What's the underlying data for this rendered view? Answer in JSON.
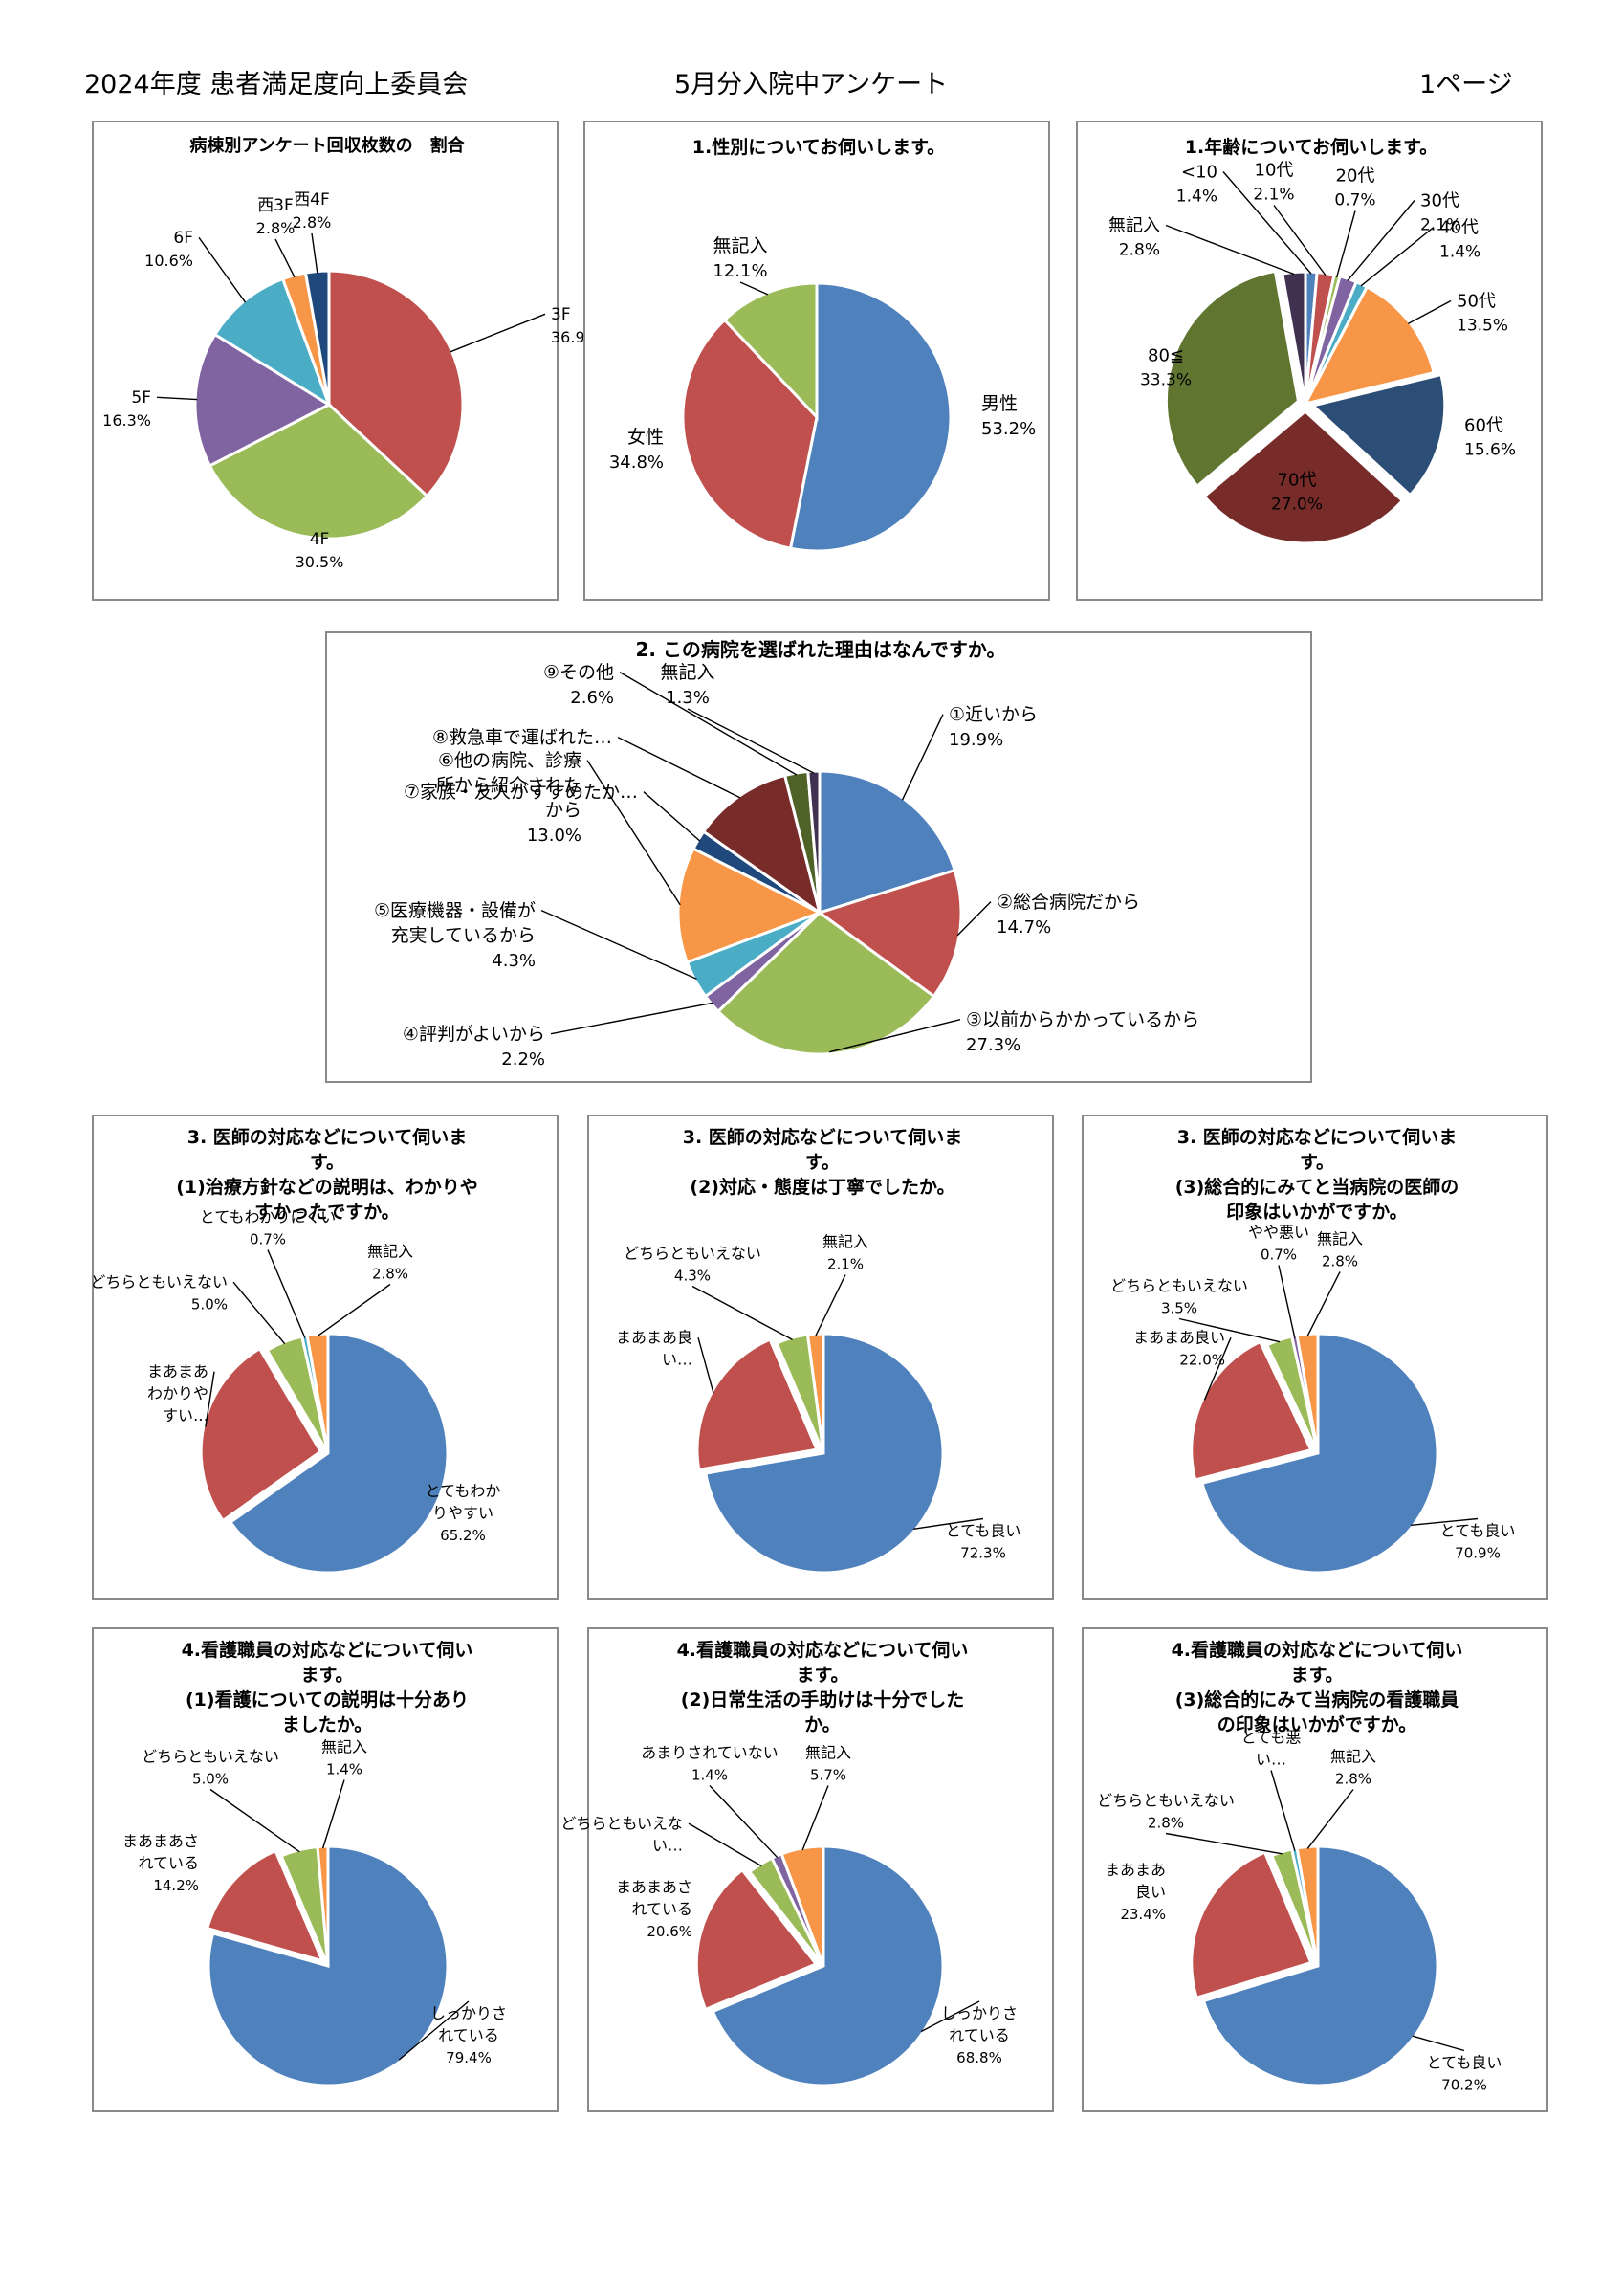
{
  "header": {
    "left": "2024年度 患者満足度向上委員会",
    "center": "5月分入院中アンケート",
    "right": "1ページ"
  },
  "chart_data": [
    {
      "id": "p1",
      "type": "pie",
      "title": [
        "病棟別アンケート回収枚数の　割合"
      ],
      "slices": [
        {
          "label": "3F",
          "value": 36.9,
          "value_text": "36.9%",
          "color": "#c0504d"
        },
        {
          "label": "4F",
          "value": 30.5,
          "value_text": "30.5%",
          "color": "#9bbb59"
        },
        {
          "label": "5F",
          "value": 16.3,
          "value_text": "16.3%",
          "color": "#8064a2"
        },
        {
          "label": "6F",
          "value": 10.6,
          "value_text": "10.6%",
          "color": "#4bacc6"
        },
        {
          "label": "西3F",
          "value": 2.8,
          "value_text": "2.8%",
          "color": "#f79646"
        },
        {
          "label": "西4F",
          "value": 2.8,
          "value_text": "2.8%",
          "color": "#1f497d"
        }
      ]
    },
    {
      "id": "p2",
      "type": "pie",
      "title": [
        "1.性別についてお伺いします。"
      ],
      "slices": [
        {
          "label": "男性",
          "value": 53.2,
          "value_text": "53.2%",
          "color": "#4f81bd"
        },
        {
          "label": "女性",
          "value": 34.8,
          "value_text": "34.8%",
          "color": "#c0504d"
        },
        {
          "label": "無記入",
          "value": 12.1,
          "value_text": "12.1%",
          "color": "#9bbb59"
        }
      ]
    },
    {
      "id": "p3",
      "type": "pie",
      "title": [
        "1.年齢についてお伺いします。"
      ],
      "slices": [
        {
          "label": "<10",
          "value": 1.4,
          "value_text": "1.4%",
          "color": "#4f81bd"
        },
        {
          "label": "10代",
          "value": 2.1,
          "value_text": "2.1%",
          "color": "#c0504d"
        },
        {
          "label": "20代",
          "value": 0.7,
          "value_text": "0.7%",
          "color": "#9bbb59"
        },
        {
          "label": "30代",
          "value": 2.1,
          "value_text": "2.1%",
          "color": "#8064a2"
        },
        {
          "label": "40代",
          "value": 1.4,
          "value_text": "1.4%",
          "color": "#4bacc6"
        },
        {
          "label": "50代",
          "value": 13.5,
          "value_text": "13.5%",
          "color": "#f79646"
        },
        {
          "label": "60代",
          "value": 15.6,
          "value_text": "15.6%",
          "color": "#2c4d75"
        },
        {
          "label": "70代",
          "value": 27.0,
          "value_text": "27.0%",
          "color": "#772c2a"
        },
        {
          "label": "80≦",
          "value": 33.3,
          "value_text": "33.3%",
          "color": "#5f7530"
        },
        {
          "label": "無記入",
          "value": 2.8,
          "value_text": "2.8%",
          "color": "#403151"
        }
      ]
    },
    {
      "id": "p4",
      "type": "pie",
      "title": [
        "2. この病院を選ばれた理由はなんですか。"
      ],
      "slices": [
        {
          "label": "①近いから",
          "value": 19.9,
          "value_text": "19.9%",
          "color": "#4f81bd"
        },
        {
          "label": "②総合病院だから",
          "value": 14.7,
          "value_text": "14.7%",
          "color": "#c0504d"
        },
        {
          "label": "③以前からかかっているから",
          "value": 27.3,
          "value_text": "27.3%",
          "color": "#9bbb59"
        },
        {
          "label": "④評判がよいから",
          "value": 2.2,
          "value_text": "2.2%",
          "color": "#8064a2"
        },
        {
          "label": "⑤医療機器・設備が充実しているから",
          "value": 4.3,
          "value_text": "4.3%",
          "color": "#4bacc6"
        },
        {
          "label": "⑥他の病院、診療所から紹介されたから",
          "value": 13.0,
          "value_text": "13.0%",
          "color": "#f79646"
        },
        {
          "label": "⑦家族・友人がすすめたか…",
          "value": 2.2,
          "value_text": "",
          "color": "#1f497d"
        },
        {
          "label": "⑧救急車で運ばれた…",
          "value": 11.2,
          "value_text": "",
          "color": "#772c2a"
        },
        {
          "label": "⑨その他",
          "value": 2.6,
          "value_text": "2.6%",
          "color": "#4f6228"
        },
        {
          "label": "無記入",
          "value": 1.3,
          "value_text": "1.3%",
          "color": "#403151"
        }
      ]
    },
    {
      "id": "p5",
      "type": "pie",
      "title": [
        "3. 医師の対応などについて伺いま",
        "す。",
        "(1)治療方針などの説明は、わかりや",
        "すかったですか。"
      ],
      "slices": [
        {
          "label": "とてもわかりやすい",
          "value": 65.2,
          "value_text": "65.2%",
          "color": "#4f81bd"
        },
        {
          "label": "まあまあわかりやすい…",
          "value": 26.3,
          "value_text": "",
          "color": "#c0504d"
        },
        {
          "label": "どちらともいえない",
          "value": 5.0,
          "value_text": "5.0%",
          "color": "#9bbb59"
        },
        {
          "label": "とてもわかりにくい",
          "value": 0.7,
          "value_text": "0.7%",
          "color": "#4bacc6"
        },
        {
          "label": "無記入",
          "value": 2.8,
          "value_text": "2.8%",
          "color": "#f79646"
        }
      ]
    },
    {
      "id": "p6",
      "type": "pie",
      "title": [
        "3. 医師の対応などについて伺いま",
        "す。",
        "(2)対応・態度は丁寧でしたか。"
      ],
      "slices": [
        {
          "label": "とても良い",
          "value": 72.3,
          "value_text": "72.3%",
          "color": "#4f81bd"
        },
        {
          "label": "まあまあ良い…",
          "value": 21.3,
          "value_text": "",
          "color": "#c0504d"
        },
        {
          "label": "どちらともいえない",
          "value": 4.3,
          "value_text": "4.3%",
          "color": "#9bbb59"
        },
        {
          "label": "無記入",
          "value": 2.1,
          "value_text": "2.1%",
          "color": "#f79646"
        }
      ]
    },
    {
      "id": "p7",
      "type": "pie",
      "title": [
        "3. 医師の対応などについて伺いま",
        "す。",
        "(3)総合的にみてと当病院の医師の",
        "印象はいかがですか。"
      ],
      "slices": [
        {
          "label": "とても良い",
          "value": 70.9,
          "value_text": "70.9%",
          "color": "#4f81bd"
        },
        {
          "label": "まあまあ良い",
          "value": 22.0,
          "value_text": "22.0%",
          "color": "#c0504d"
        },
        {
          "label": "どちらともいえない",
          "value": 3.5,
          "value_text": "3.5%",
          "color": "#9bbb59"
        },
        {
          "label": "やや悪い",
          "value": 0.7,
          "value_text": "0.7%",
          "color": "#8064a2"
        },
        {
          "label": "無記入",
          "value": 2.8,
          "value_text": "2.8%",
          "color": "#f79646"
        }
      ]
    },
    {
      "id": "p8",
      "type": "pie",
      "title": [
        "4.看護職員の対応などについて伺い",
        "ます。",
        "(1)看護についての説明は十分あり",
        "ましたか。"
      ],
      "slices": [
        {
          "label": "しっかりされている",
          "value": 79.4,
          "value_text": "79.4%",
          "color": "#4f81bd"
        },
        {
          "label": "まあまあされている",
          "value": 14.2,
          "value_text": "14.2%",
          "color": "#c0504d"
        },
        {
          "label": "どちらともいえない",
          "value": 5.0,
          "value_text": "5.0%",
          "color": "#9bbb59"
        },
        {
          "label": "無記入",
          "value": 1.4,
          "value_text": "1.4%",
          "color": "#f79646"
        }
      ]
    },
    {
      "id": "p9",
      "type": "pie",
      "title": [
        "4.看護職員の対応などについて伺い",
        "ます。",
        "(2)日常生活の手助けは十分でした",
        "か。"
      ],
      "slices": [
        {
          "label": "しっかりされている",
          "value": 68.8,
          "value_text": "68.8%",
          "color": "#4f81bd"
        },
        {
          "label": "まあまあされている",
          "value": 20.6,
          "value_text": "20.6%",
          "color": "#c0504d"
        },
        {
          "label": "どちらともいえない…",
          "value": 3.5,
          "value_text": "",
          "color": "#9bbb59"
        },
        {
          "label": "あまりされていない",
          "value": 1.4,
          "value_text": "1.4%",
          "color": "#8064a2"
        },
        {
          "label": "無記入",
          "value": 5.7,
          "value_text": "5.7%",
          "color": "#f79646"
        }
      ]
    },
    {
      "id": "p10",
      "type": "pie",
      "title": [
        "4.看護職員の対応などについて伺い",
        "ます。",
        "(3)総合的にみて当病院の看護職員",
        "の印象はいかがですか。"
      ],
      "slices": [
        {
          "label": "とても良い",
          "value": 70.2,
          "value_text": "70.2%",
          "color": "#4f81bd"
        },
        {
          "label": "まあまあ良い",
          "value": 23.4,
          "value_text": "23.4%",
          "color": "#c0504d"
        },
        {
          "label": "どちらともいえない",
          "value": 2.8,
          "value_text": "2.8%",
          "color": "#9bbb59"
        },
        {
          "label": "とても悪い…",
          "value": 0.7,
          "value_text": "",
          "color": "#4bacc6"
        },
        {
          "label": "無記入",
          "value": 2.8,
          "value_text": "2.8%",
          "color": "#f79646"
        }
      ]
    }
  ]
}
